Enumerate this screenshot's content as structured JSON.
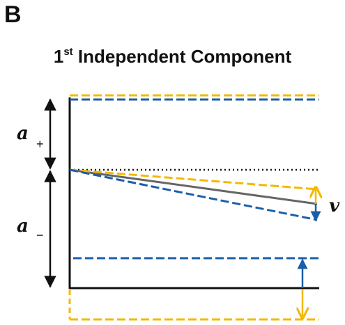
{
  "panel_label": "B",
  "title": {
    "prefix": "1",
    "superscript": "st",
    "rest": " Independent Component"
  },
  "labels": {
    "a_plus_symbol": "a",
    "a_plus_sub": "+",
    "a_minus_symbol": "a",
    "a_minus_sub": "−",
    "v_symbol": "v"
  },
  "colors": {
    "black": "#111111",
    "gray": "#666666",
    "yellow": "#f5b800",
    "blue": "#1a5ea8"
  }
}
